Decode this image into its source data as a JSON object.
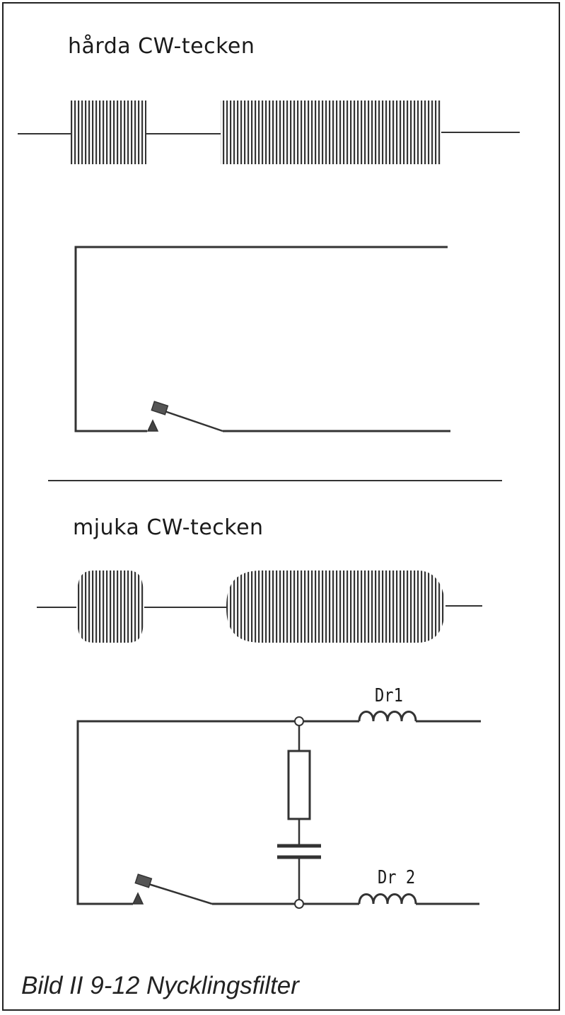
{
  "labels": {
    "hard_title": "hårda CW-tecken",
    "soft_title": "mjuka CW-tecken",
    "dr1": "Dr1",
    "dr2": "Dr 2",
    "caption": "Bild II 9-12  Nycklingsfilter"
  },
  "colors": {
    "ink": "#222222",
    "background": "#ffffff"
  }
}
